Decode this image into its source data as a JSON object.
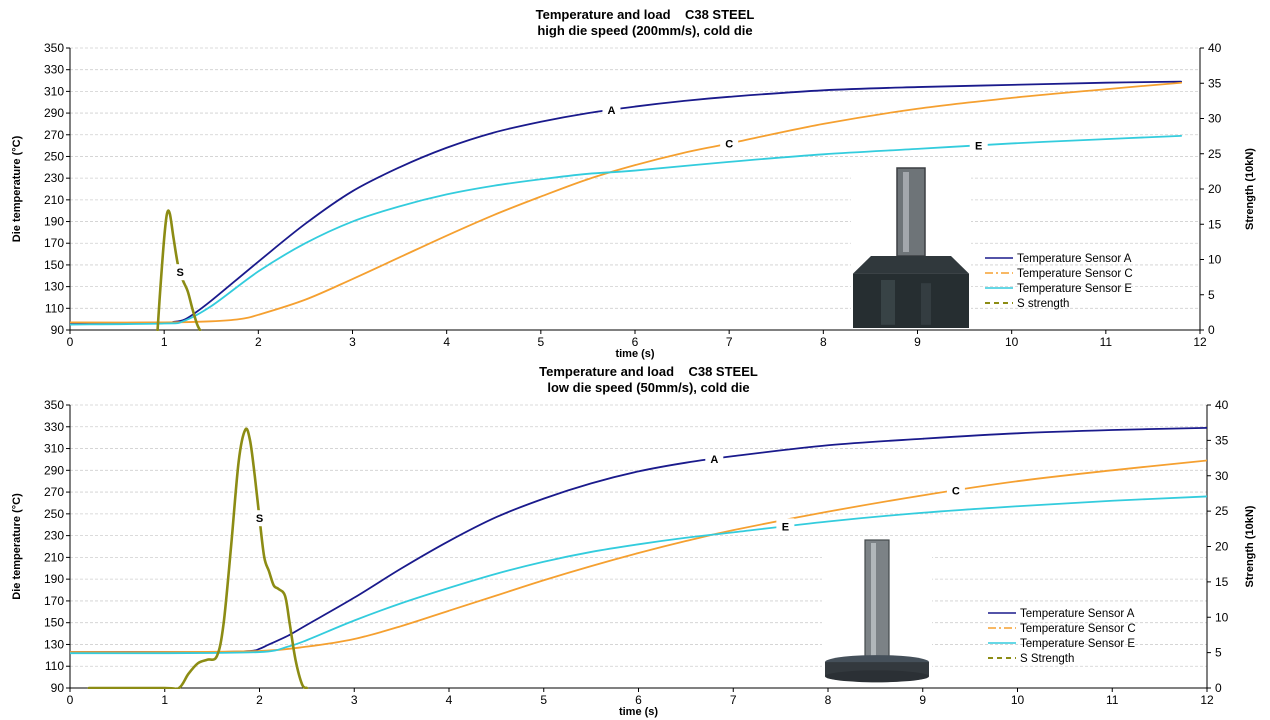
{
  "chart_data": [
    {
      "type": "line",
      "title": "Temperature and load    C38 STEEL",
      "subtitle": "high die speed (200mm/s), cold die",
      "xlabel": "time (s)",
      "ylabel": "Die temperature  (°C)",
      "y2label": "Strength (10kN)",
      "xlim": [
        0,
        12
      ],
      "ylim": [
        90,
        350
      ],
      "y2lim": [
        0,
        40
      ],
      "x_ticks": [
        0,
        1,
        2,
        3,
        4,
        5,
        6,
        7,
        8,
        9,
        10,
        11,
        12
      ],
      "y_ticks": [
        90,
        110,
        130,
        150,
        170,
        190,
        210,
        230,
        250,
        270,
        290,
        310,
        330,
        350
      ],
      "y2_ticks": [
        0,
        5,
        10,
        15,
        20,
        25,
        30,
        35,
        40
      ],
      "grid": true,
      "legend_position": "bottom-right",
      "series": [
        {
          "name": "Temperature Sensor A",
          "label": "A",
          "label_at": 5.75,
          "color": "#1a1a8c",
          "axis": "left",
          "x": [
            0,
            1.0,
            1.1,
            1.2,
            1.3,
            1.5,
            2.0,
            2.5,
            3.0,
            3.5,
            4.0,
            4.5,
            5.0,
            5.5,
            6.0,
            6.5,
            7.0,
            8.0,
            9.0,
            10.0,
            11.0,
            11.8
          ],
          "y": [
            96,
            97,
            97.5,
            99,
            104,
            117,
            153,
            188,
            218,
            240,
            258,
            272,
            282,
            290,
            296,
            301,
            305,
            311,
            314,
            316,
            318,
            319
          ]
        },
        {
          "name": "Temperature Sensor C",
          "label": "C",
          "label_at": 7.0,
          "color": "#f5a030",
          "dash": "8 3 2 3",
          "axis": "left",
          "x": [
            0,
            1.0,
            1.5,
            1.8,
            2.0,
            2.5,
            3.0,
            3.5,
            4.0,
            4.5,
            5.0,
            5.5,
            6.0,
            6.5,
            7.0,
            8.0,
            9.0,
            10.0,
            11.0,
            11.8
          ],
          "y": [
            97,
            97,
            98,
            100,
            104,
            118,
            137,
            157,
            177,
            196,
            213,
            229,
            242,
            253,
            262,
            280,
            294,
            304,
            312,
            318
          ]
        },
        {
          "name": "Temperature Sensor E",
          "label": "E",
          "label_at": 9.65,
          "color": "#33ccdd",
          "axis": "left",
          "x": [
            0,
            1.0,
            1.2,
            1.5,
            2.0,
            2.5,
            3.0,
            3.5,
            4.0,
            4.5,
            5.0,
            5.5,
            6.0,
            7.0,
            8.0,
            9.0,
            10.0,
            11.0,
            11.8
          ],
          "y": [
            95,
            96,
            98,
            112,
            144,
            170,
            190,
            204,
            215,
            223,
            229,
            234,
            237,
            245,
            252,
            257,
            262,
            266,
            269
          ]
        },
        {
          "name": "S strength",
          "label": "S",
          "label_at": 1.17,
          "color": "#8c8c14",
          "dash": "5 4",
          "axis": "right",
          "x": [
            0.93,
            0.96,
            1.0,
            1.03,
            1.06,
            1.1,
            1.15,
            1.2,
            1.25,
            1.3,
            1.35,
            1.38
          ],
          "y": [
            0,
            6,
            13,
            16.5,
            16.5,
            13,
            9,
            7,
            5.5,
            3,
            0.8,
            0
          ]
        }
      ]
    },
    {
      "type": "line",
      "title": "Temperature and load    C38 STEEL",
      "subtitle": "low die speed (50mm/s), cold die",
      "xlabel": "time (s)",
      "ylabel": "Die temperature  (°C)",
      "y2label": "Strength (10kN)",
      "xlim": [
        0,
        12
      ],
      "ylim": [
        90,
        350
      ],
      "y2lim": [
        0,
        40
      ],
      "x_ticks": [
        0,
        1,
        2,
        3,
        4,
        5,
        6,
        7,
        8,
        9,
        10,
        11,
        12
      ],
      "y_ticks": [
        90,
        110,
        130,
        150,
        170,
        190,
        210,
        230,
        250,
        270,
        290,
        310,
        330,
        350
      ],
      "y2_ticks": [
        0,
        5,
        10,
        15,
        20,
        25,
        30,
        35,
        40
      ],
      "grid": true,
      "legend_position": "bottom-right",
      "series": [
        {
          "name": "Temperature Sensor A",
          "label": "A",
          "label_at": 6.8,
          "color": "#1a1a8c",
          "axis": "left",
          "x": [
            0,
            1.0,
            1.5,
            1.9,
            2.0,
            2.1,
            2.3,
            2.5,
            3.0,
            3.5,
            4.0,
            4.5,
            5.0,
            5.5,
            6.0,
            6.5,
            7.0,
            8.0,
            9.0,
            10.0,
            11.0,
            12.0
          ],
          "y": [
            123,
            123,
            123,
            124,
            126,
            130,
            138,
            148,
            173,
            200,
            225,
            247,
            264,
            278,
            289,
            297,
            303,
            313,
            319,
            324,
            327,
            329
          ]
        },
        {
          "name": "Temperature Sensor C",
          "label": "C",
          "label_at": 9.35,
          "color": "#f5a030",
          "dash": "8 3 2 3",
          "axis": "left",
          "x": [
            0,
            1.0,
            2.0,
            2.5,
            3.0,
            3.5,
            4.0,
            4.5,
            5.0,
            5.5,
            6.0,
            6.5,
            7.0,
            8.0,
            9.0,
            10.0,
            11.0,
            12.0
          ],
          "y": [
            123,
            123,
            124,
            128,
            135,
            147,
            161,
            175,
            189,
            202,
            214,
            225,
            235,
            252,
            267,
            280,
            290,
            299
          ]
        },
        {
          "name": "Temperature Sensor E",
          "label": "E",
          "label_at": 7.55,
          "color": "#33ccdd",
          "axis": "left",
          "x": [
            0,
            1.0,
            2.0,
            2.3,
            2.5,
            3.0,
            3.5,
            4.0,
            4.5,
            5.0,
            5.5,
            6.0,
            6.5,
            7.0,
            8.0,
            9.0,
            10.0,
            11.0,
            12.0
          ],
          "y": [
            122,
            122,
            123,
            128,
            134,
            152,
            168,
            182,
            195,
            206,
            215,
            222,
            228,
            233,
            243,
            251,
            257,
            262,
            266
          ]
        },
        {
          "name": "S Strength",
          "label": "S",
          "label_at": 2.0,
          "color": "#8c8c14",
          "dash": "5 4",
          "axis": "right",
          "x": [
            0.2,
            1.0,
            1.15,
            1.25,
            1.35,
            1.45,
            1.55,
            1.62,
            1.7,
            1.78,
            1.85,
            1.9,
            1.95,
            2.0,
            2.05,
            2.1,
            2.15,
            2.2,
            2.27,
            2.32,
            2.38,
            2.45,
            2.5
          ],
          "y": [
            0,
            0,
            0,
            2,
            3.5,
            4,
            4.5,
            9,
            20,
            32,
            36.5,
            35,
            30,
            24,
            18.5,
            16.5,
            14.5,
            14,
            13,
            9,
            4,
            0.5,
            0
          ]
        }
      ]
    }
  ]
}
